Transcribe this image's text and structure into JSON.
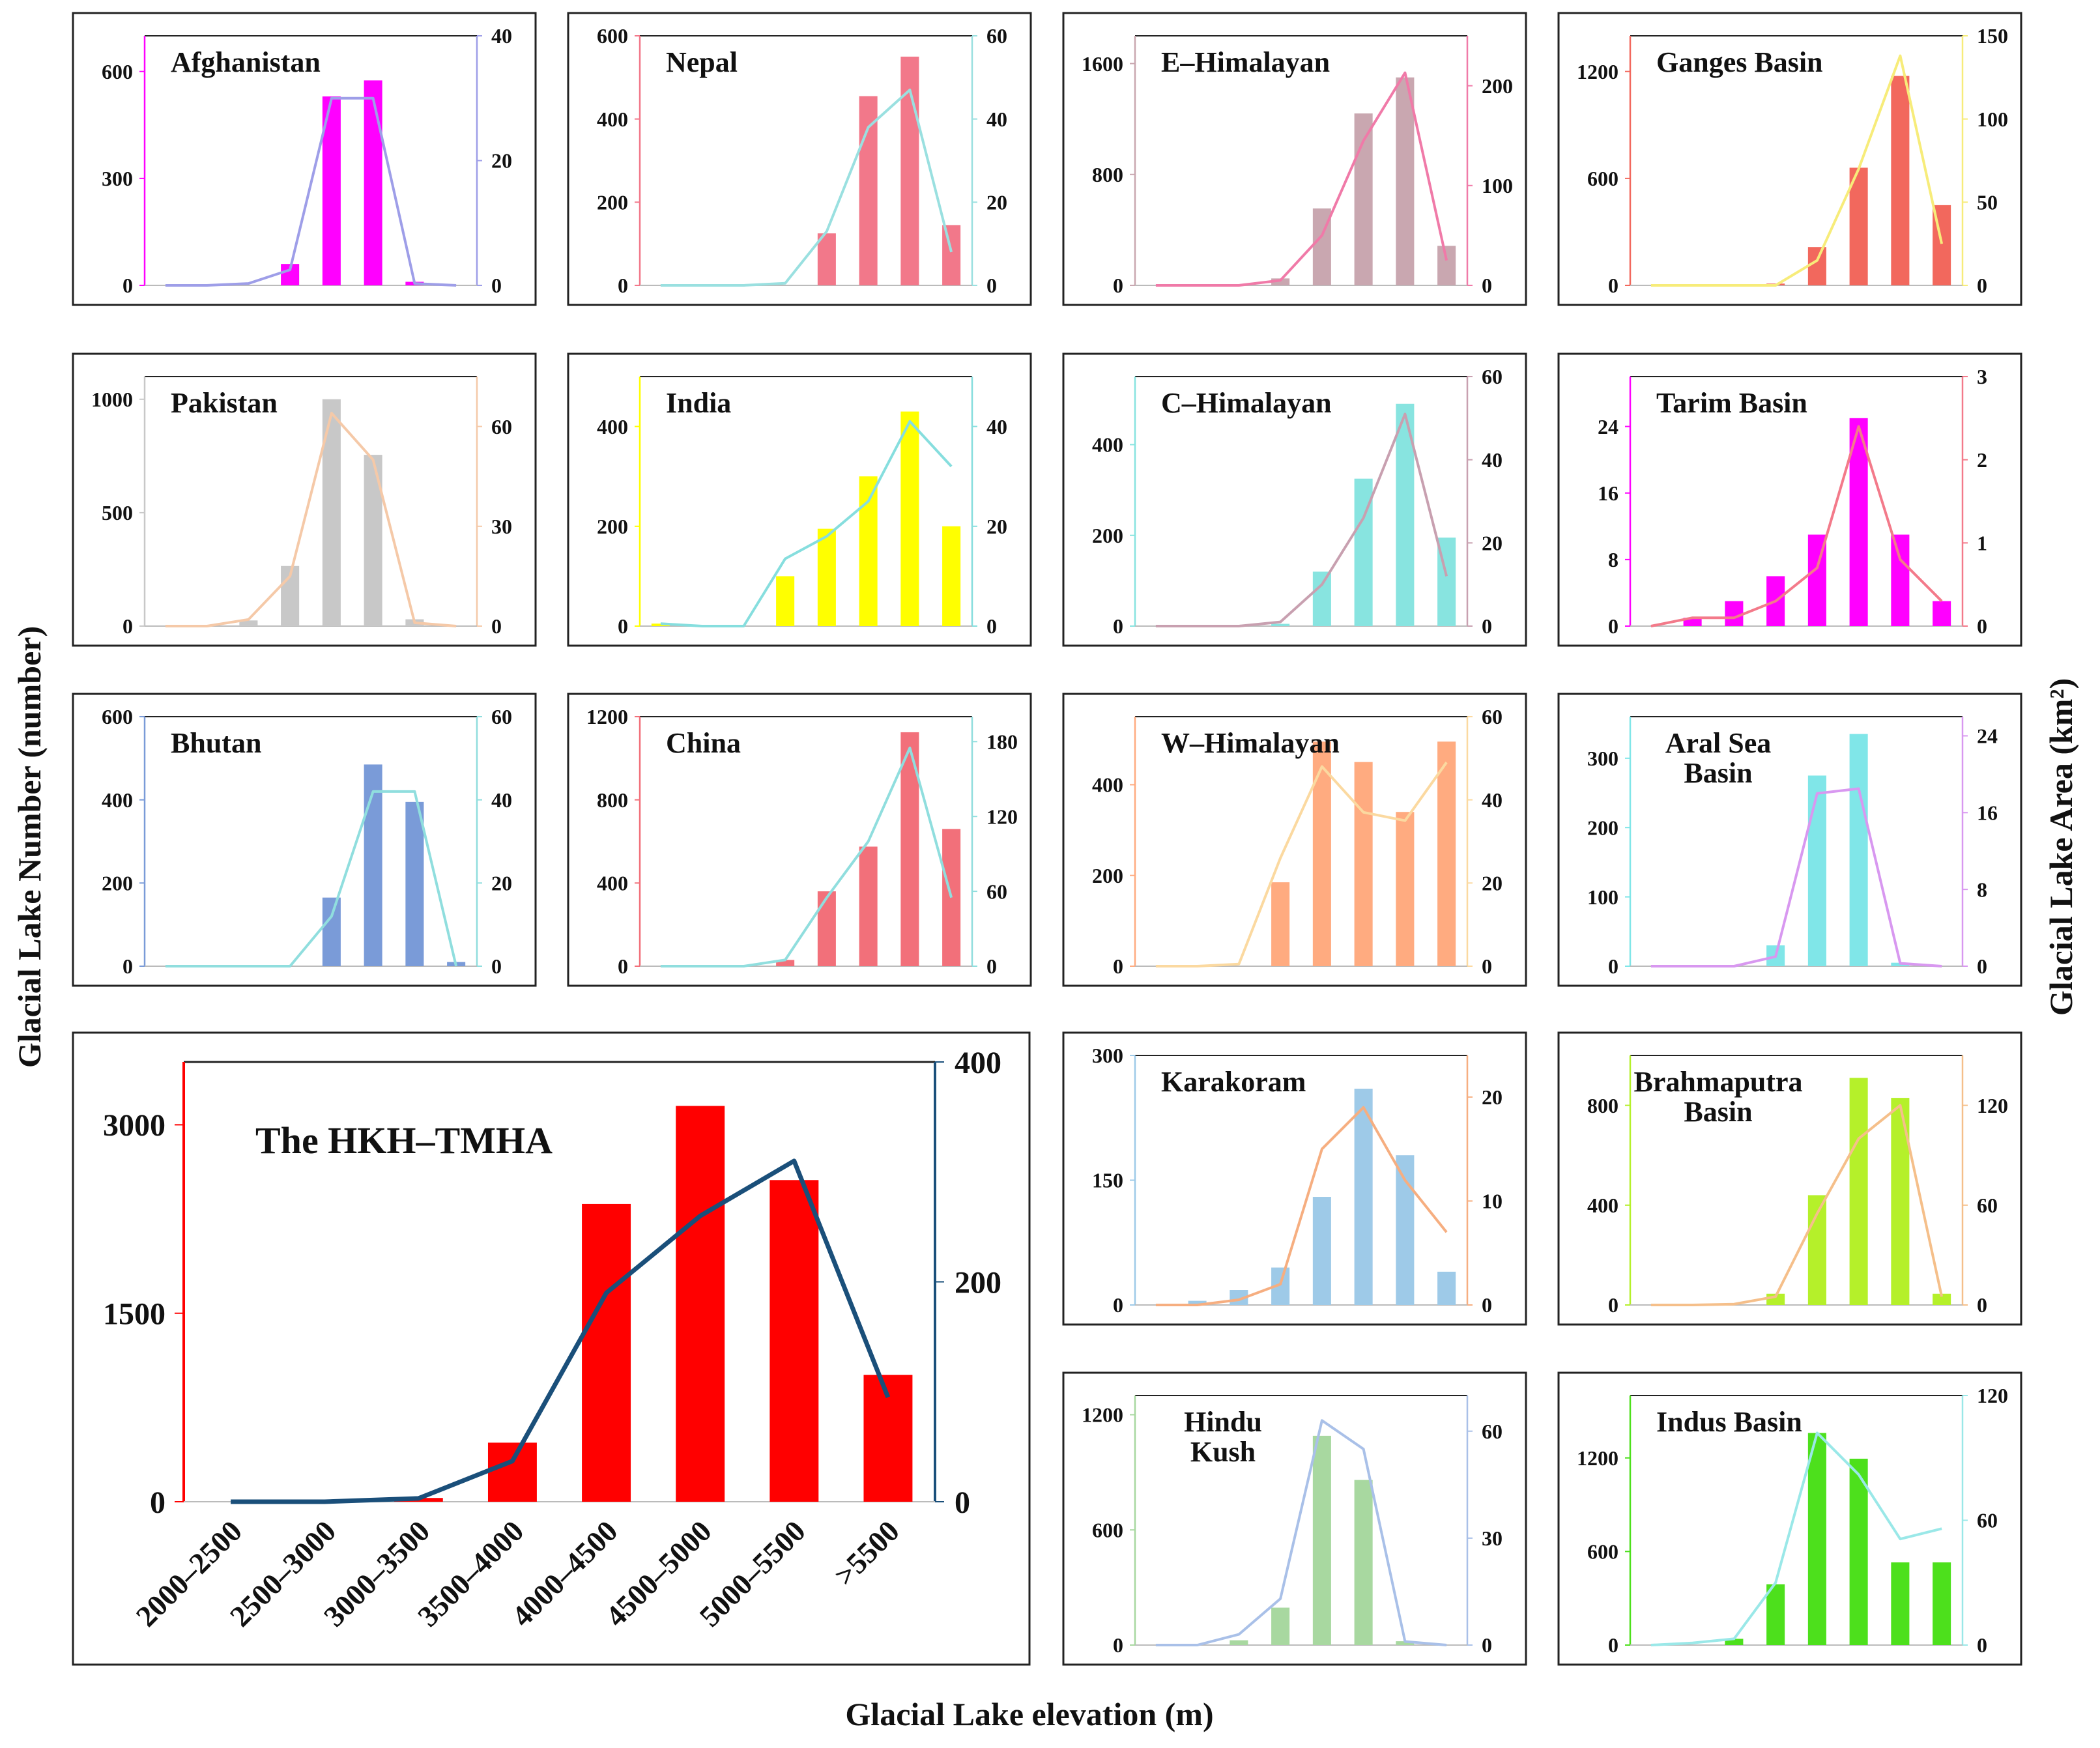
{
  "figure": {
    "y_left_title": "Glacial Lake Number  (number)",
    "y_right_title": "Glacial Lake Area  (km²)",
    "x_title": "Glacial Lake elevation  (m)"
  },
  "chart_data": [
    {
      "id": "afghanistan",
      "type": "bar",
      "title": [
        "Afghanistan"
      ],
      "bar_color": "#ff00ff",
      "line_color": "#9e9ee8",
      "ylim_left": [
        0,
        700
      ],
      "ylim_right": [
        0,
        40
      ],
      "ticks_left": [
        "0",
        "300",
        "600"
      ],
      "ticks_right": [
        "0",
        "20",
        "40"
      ],
      "bars": [
        0,
        0,
        0,
        60,
        530,
        575,
        10,
        0
      ],
      "line": [
        0,
        0,
        0.3,
        2.5,
        30,
        30,
        0.3,
        0
      ]
    },
    {
      "id": "nepal",
      "type": "bar",
      "title": [
        "Nepal"
      ],
      "bar_color": "#f2788a",
      "line_color": "#9ae0e0",
      "ylim_left": [
        0,
        600
      ],
      "ylim_right": [
        0,
        60
      ],
      "ticks_left": [
        "0",
        "200",
        "400",
        "600"
      ],
      "ticks_right": [
        "0",
        "20",
        "40",
        "60"
      ],
      "bars": [
        0,
        0,
        0,
        0,
        125,
        455,
        550,
        145
      ],
      "line": [
        0,
        0,
        0,
        0.5,
        13,
        38,
        47,
        8
      ]
    },
    {
      "id": "e-himalayan",
      "type": "bar",
      "title": [
        "E–Himalayan"
      ],
      "bar_color": "#c9a7b0",
      "line_color": "#f07aa8",
      "ylim_left": [
        0,
        1800
      ],
      "ylim_right": [
        0,
        250
      ],
      "ticks_left": [
        "0",
        "800",
        "1600"
      ],
      "ticks_right": [
        "0",
        "100",
        "200"
      ],
      "bars": [
        0,
        0,
        0,
        50,
        555,
        1240,
        1500,
        285
      ],
      "line": [
        0,
        0,
        0,
        5,
        50,
        145,
        213,
        25
      ]
    },
    {
      "id": "ganges-basin",
      "type": "bar",
      "title": [
        "Ganges Basin"
      ],
      "bar_color": "#f2685d",
      "line_color": "#f7ec7a",
      "ylim_left": [
        0,
        1400
      ],
      "ylim_right": [
        0,
        150
      ],
      "ticks_left": [
        "0",
        "600",
        "1200"
      ],
      "ticks_right": [
        "0",
        "50",
        "100",
        "150"
      ],
      "bars": [
        0,
        0,
        0,
        10,
        215,
        660,
        1175,
        450
      ],
      "line": [
        0,
        0,
        0,
        0,
        15,
        70,
        138,
        25
      ]
    },
    {
      "id": "pakistan",
      "type": "bar",
      "title": [
        "Pakistan"
      ],
      "bar_color": "#c8c8c8",
      "line_color": "#f5c9a8",
      "ylim_left": [
        0,
        1100
      ],
      "ylim_right": [
        0,
        75
      ],
      "ticks_left": [
        "0",
        "500",
        "1000"
      ],
      "ticks_right": [
        "0",
        "30",
        "60"
      ],
      "bars": [
        0,
        0,
        25,
        265,
        1000,
        755,
        30,
        0
      ],
      "line": [
        0,
        0,
        2,
        15,
        64,
        50,
        1,
        0
      ]
    },
    {
      "id": "india",
      "type": "bar",
      "title": [
        "India"
      ],
      "bar_color": "#ffff00",
      "line_color": "#86dede",
      "ylim_left": [
        0,
        500
      ],
      "ylim_right": [
        0,
        50
      ],
      "ticks_left": [
        "0",
        "200",
        "400"
      ],
      "ticks_right": [
        "0",
        "20",
        "40"
      ],
      "bars": [
        5,
        0,
        0,
        100,
        195,
        300,
        430,
        200
      ],
      "line": [
        0.5,
        0,
        0,
        13.5,
        18,
        25,
        41,
        32
      ]
    },
    {
      "id": "c-himalayan",
      "type": "bar",
      "title": [
        "C–Himalayan"
      ],
      "bar_color": "#88e4e0",
      "line_color": "#c8a0b0",
      "ylim_left": [
        0,
        550
      ],
      "ylim_right": [
        0,
        60
      ],
      "ticks_left": [
        "0",
        "200",
        "400"
      ],
      "ticks_right": [
        "0",
        "20",
        "40",
        "60"
      ],
      "bars": [
        0,
        0,
        0,
        5,
        120,
        325,
        490,
        195
      ],
      "line": [
        0,
        0,
        0,
        1,
        10,
        26,
        51,
        12
      ]
    },
    {
      "id": "tarim-basin",
      "type": "bar",
      "title": [
        "Tarim Basin"
      ],
      "bar_color": "#ff00ff",
      "line_color": "#f37a8a",
      "ylim_left": [
        0,
        30
      ],
      "ylim_right": [
        0,
        3
      ],
      "ticks_left": [
        "0",
        "8",
        "16",
        "24"
      ],
      "ticks_right": [
        "0",
        "1",
        "2",
        "3"
      ],
      "bars": [
        0,
        1,
        3,
        6,
        11,
        25,
        11,
        3
      ],
      "line": [
        0,
        0.1,
        0.1,
        0.3,
        0.7,
        2.4,
        0.8,
        0.3
      ]
    },
    {
      "id": "bhutan",
      "type": "bar",
      "title": [
        "Bhutan"
      ],
      "bar_color": "#7a9bd8",
      "line_color": "#90dede",
      "ylim_left": [
        0,
        600
      ],
      "ylim_right": [
        0,
        60
      ],
      "ticks_left": [
        "0",
        "200",
        "400",
        "600"
      ],
      "ticks_right": [
        "0",
        "20",
        "40",
        "60"
      ],
      "bars": [
        0,
        0,
        0,
        0,
        165,
        485,
        395,
        10
      ],
      "line": [
        0,
        0,
        0,
        0,
        12,
        42,
        42,
        0
      ]
    },
    {
      "id": "china",
      "type": "bar",
      "title": [
        "China"
      ],
      "bar_color": "#f2707a",
      "line_color": "#90dede",
      "ylim_left": [
        0,
        1200
      ],
      "ylim_right": [
        0,
        200
      ],
      "ticks_left": [
        "0",
        "400",
        "800",
        "1200"
      ],
      "ticks_right": [
        "0",
        "60",
        "120",
        "180"
      ],
      "bars": [
        0,
        0,
        0,
        30,
        360,
        575,
        1125,
        660
      ],
      "line": [
        0,
        0,
        0,
        5,
        55,
        100,
        175,
        55
      ]
    },
    {
      "id": "w-himalayan",
      "type": "bar",
      "title": [
        "W–Himalayan"
      ],
      "bar_color": "#ffab80",
      "line_color": "#fbd9a0",
      "ylim_left": [
        0,
        550
      ],
      "ylim_right": [
        0,
        60
      ],
      "ticks_left": [
        "0",
        "200",
        "400"
      ],
      "ticks_right": [
        "0",
        "20",
        "40",
        "60"
      ],
      "bars": [
        0,
        0,
        0,
        185,
        495,
        450,
        340,
        495
      ],
      "line": [
        0,
        0,
        0.5,
        26,
        48,
        37,
        35,
        49
      ]
    },
    {
      "id": "aral-sea-basin",
      "type": "bar",
      "title": [
        "Aral Sea",
        "Basin"
      ],
      "bar_color": "#80e6e8",
      "line_color": "#d898f0",
      "ylim_left": [
        0,
        360
      ],
      "ylim_right": [
        0,
        26
      ],
      "ticks_left": [
        "0",
        "100",
        "200",
        "300"
      ],
      "ticks_right": [
        "0",
        "8",
        "16",
        "24"
      ],
      "bars": [
        0,
        0,
        0,
        30,
        275,
        335,
        5,
        0
      ],
      "line": [
        0,
        0,
        0,
        1,
        18,
        18.5,
        0.3,
        0
      ]
    },
    {
      "id": "karakoram",
      "type": "bar",
      "title": [
        "Karakoram"
      ],
      "bar_color": "#9ecae8",
      "line_color": "#f6ae80",
      "ylim_left": [
        0,
        300
      ],
      "ylim_right": [
        0,
        24
      ],
      "ticks_left": [
        "0",
        "150",
        "300"
      ],
      "ticks_right": [
        "0",
        "10",
        "20"
      ],
      "bars": [
        0,
        5,
        18,
        45,
        130,
        260,
        180,
        40
      ],
      "line": [
        0,
        0,
        0.5,
        2,
        15,
        19,
        12,
        7
      ]
    },
    {
      "id": "brahmaputra-basin",
      "type": "bar",
      "title": [
        "Brahmaputra",
        "Basin"
      ],
      "bar_color": "#b5f02a",
      "line_color": "#f5bf8a",
      "ylim_left": [
        0,
        1000
      ],
      "ylim_right": [
        0,
        150
      ],
      "ticks_left": [
        "0",
        "400",
        "800"
      ],
      "ticks_right": [
        "0",
        "60",
        "120"
      ],
      "bars": [
        0,
        0,
        0,
        45,
        440,
        910,
        830,
        45
      ],
      "line": [
        0,
        0,
        0.5,
        5,
        55,
        100,
        120,
        5
      ]
    },
    {
      "id": "hindu-kush",
      "type": "bar",
      "title": [
        "Hindu",
        "Kush"
      ],
      "bar_color": "#a8d8a0",
      "line_color": "#a9c0e8",
      "ylim_left": [
        0,
        1300
      ],
      "ylim_right": [
        0,
        70
      ],
      "ticks_left": [
        "0",
        "600",
        "1200"
      ],
      "ticks_right": [
        "0",
        "30",
        "60"
      ],
      "bars": [
        0,
        0,
        25,
        195,
        1090,
        860,
        20,
        0
      ],
      "line": [
        0,
        0,
        3,
        13,
        63,
        55,
        1,
        0
      ]
    },
    {
      "id": "indus-basin",
      "type": "bar",
      "title": [
        "Indus Basin"
      ],
      "bar_color": "#4de01c",
      "line_color": "#9ae8e8",
      "ylim_left": [
        0,
        1600
      ],
      "ylim_right": [
        0,
        120
      ],
      "ticks_left": [
        "0",
        "600",
        "1200"
      ],
      "ticks_right": [
        "0",
        "60",
        "120"
      ],
      "bars": [
        0,
        0,
        40,
        390,
        1360,
        1195,
        530,
        530
      ],
      "line": [
        0,
        1,
        3,
        30,
        102,
        82,
        51,
        56
      ]
    },
    {
      "id": "hkh-tmha",
      "type": "bar",
      "title": [
        "The HKH–TMHA"
      ],
      "bar_color": "#ff0000",
      "line_color": "#1a4f7a",
      "categories": [
        "2000–2500",
        "2500–3000",
        "3000–3500",
        "3500–4000",
        "4000–4500",
        "4500–5000",
        "5000–5500",
        ">5500"
      ],
      "ylim_left": [
        0,
        3500
      ],
      "ylim_right": [
        0,
        400
      ],
      "ticks_left": [
        "0",
        "1500",
        "3000"
      ],
      "ticks_right": [
        "0",
        "200",
        "400"
      ],
      "bars": [
        0,
        5,
        30,
        470,
        2370,
        3150,
        2560,
        1010
      ],
      "line": [
        0,
        0,
        3,
        37,
        190,
        260,
        310,
        95
      ]
    }
  ]
}
